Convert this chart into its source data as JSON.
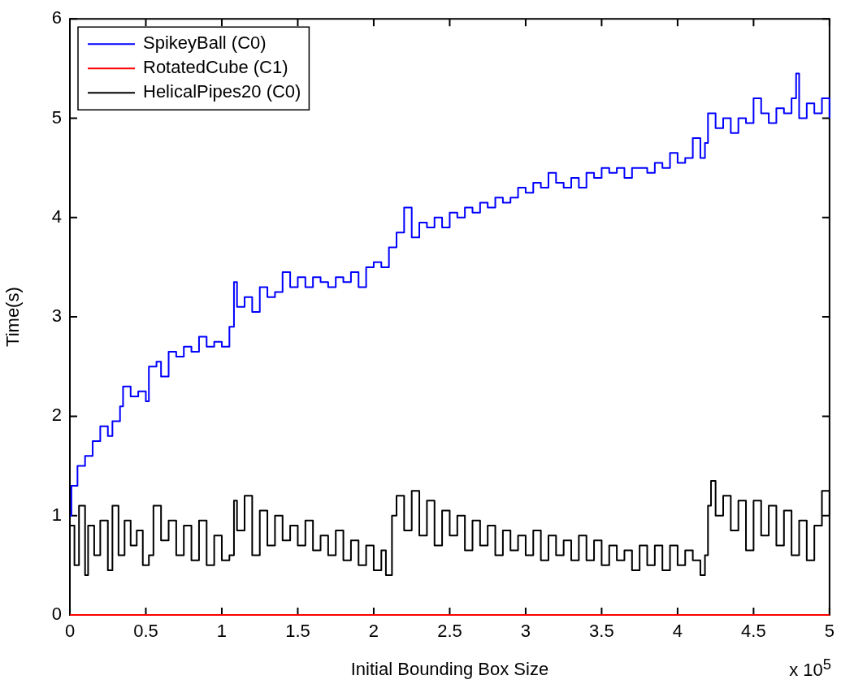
{
  "chart_data": {
    "type": "step",
    "xlabel": "Initial Bounding Box Size",
    "ylabel": "Time(s)",
    "xlim": [
      0,
      5
    ],
    "xticks": [
      0,
      0.5,
      1,
      1.5,
      2,
      2.5,
      3,
      3.5,
      4,
      4.5,
      5
    ],
    "ylim": [
      0,
      6
    ],
    "yticks": [
      0,
      1,
      2,
      3,
      4,
      5,
      6
    ],
    "grid": false,
    "legend": "top left",
    "marker": "none",
    "line_style": "solid",
    "annotations": [
      "x 10$^{5}$"
    ],
    "series": [
      {
        "name": "SpikeyBall (C0)",
        "color": "#0000ff",
        "x": [
          0,
          0.01,
          0.05,
          0.1,
          0.15,
          0.2,
          0.25,
          0.28,
          0.33,
          0.35,
          0.4,
          0.45,
          0.5,
          0.52,
          0.57,
          0.6,
          0.65,
          0.7,
          0.75,
          0.8,
          0.85,
          0.9,
          0.95,
          1.0,
          1.05,
          1.08,
          1.1,
          1.15,
          1.2,
          1.25,
          1.3,
          1.35,
          1.4,
          1.45,
          1.5,
          1.55,
          1.6,
          1.65,
          1.7,
          1.75,
          1.8,
          1.85,
          1.9,
          1.95,
          2.0,
          2.05,
          2.1,
          2.15,
          2.2,
          2.25,
          2.3,
          2.35,
          2.4,
          2.45,
          2.5,
          2.55,
          2.6,
          2.65,
          2.7,
          2.75,
          2.8,
          2.85,
          2.9,
          2.95,
          3.0,
          3.05,
          3.1,
          3.15,
          3.2,
          3.25,
          3.3,
          3.35,
          3.4,
          3.45,
          3.5,
          3.55,
          3.6,
          3.65,
          3.7,
          3.75,
          3.8,
          3.85,
          3.9,
          3.95,
          4.0,
          4.05,
          4.1,
          4.15,
          4.18,
          4.2,
          4.25,
          4.3,
          4.35,
          4.4,
          4.45,
          4.5,
          4.55,
          4.6,
          4.65,
          4.7,
          4.75,
          4.78,
          4.8,
          4.85,
          4.9,
          4.95,
          5.0
        ],
        "values": [
          1.0,
          1.3,
          1.5,
          1.6,
          1.75,
          1.9,
          1.8,
          1.95,
          2.1,
          2.3,
          2.2,
          2.25,
          2.15,
          2.5,
          2.55,
          2.4,
          2.65,
          2.6,
          2.7,
          2.65,
          2.8,
          2.7,
          2.75,
          2.7,
          2.9,
          3.35,
          3.1,
          3.2,
          3.05,
          3.3,
          3.2,
          3.25,
          3.45,
          3.3,
          3.4,
          3.3,
          3.4,
          3.35,
          3.3,
          3.4,
          3.35,
          3.45,
          3.3,
          3.5,
          3.55,
          3.5,
          3.7,
          3.85,
          4.1,
          3.8,
          3.95,
          3.9,
          4.0,
          3.9,
          4.05,
          4.0,
          4.1,
          4.05,
          4.15,
          4.1,
          4.2,
          4.15,
          4.2,
          4.3,
          4.25,
          4.35,
          4.3,
          4.45,
          4.35,
          4.3,
          4.4,
          4.3,
          4.45,
          4.4,
          4.5,
          4.45,
          4.5,
          4.4,
          4.5,
          4.5,
          4.45,
          4.55,
          4.5,
          4.65,
          4.55,
          4.6,
          4.8,
          4.6,
          4.75,
          5.05,
          4.9,
          5.0,
          4.85,
          5.0,
          4.95,
          5.2,
          5.05,
          4.95,
          5.1,
          5.05,
          5.2,
          5.45,
          5.0,
          5.15,
          5.05,
          5.2,
          5.0
        ]
      },
      {
        "name": "RotatedCube (C1)",
        "color": "#ff0000",
        "x": [
          0,
          5
        ],
        "values": [
          0,
          0
        ]
      },
      {
        "name": "HelicalPipes20 (C0)",
        "color": "#000000",
        "x": [
          0,
          0.03,
          0.06,
          0.1,
          0.12,
          0.16,
          0.2,
          0.25,
          0.28,
          0.32,
          0.36,
          0.4,
          0.44,
          0.48,
          0.52,
          0.55,
          0.6,
          0.65,
          0.7,
          0.75,
          0.8,
          0.85,
          0.9,
          0.95,
          1.0,
          1.05,
          1.08,
          1.1,
          1.15,
          1.2,
          1.25,
          1.3,
          1.35,
          1.4,
          1.45,
          1.5,
          1.55,
          1.6,
          1.65,
          1.7,
          1.75,
          1.8,
          1.85,
          1.9,
          1.95,
          2.0,
          2.05,
          2.08,
          2.12,
          2.15,
          2.2,
          2.25,
          2.3,
          2.35,
          2.4,
          2.45,
          2.5,
          2.55,
          2.6,
          2.65,
          2.7,
          2.75,
          2.8,
          2.85,
          2.9,
          2.95,
          3.0,
          3.05,
          3.1,
          3.15,
          3.2,
          3.25,
          3.3,
          3.35,
          3.4,
          3.45,
          3.5,
          3.55,
          3.6,
          3.65,
          3.7,
          3.75,
          3.8,
          3.85,
          3.9,
          3.95,
          4.0,
          4.05,
          4.1,
          4.15,
          4.18,
          4.2,
          4.22,
          4.25,
          4.3,
          4.35,
          4.4,
          4.45,
          4.5,
          4.55,
          4.6,
          4.65,
          4.7,
          4.75,
          4.8,
          4.85,
          4.9,
          4.95,
          5.0
        ],
        "values": [
          0.9,
          0.5,
          1.1,
          0.4,
          0.9,
          0.6,
          0.95,
          0.45,
          1.1,
          0.6,
          0.95,
          0.7,
          0.85,
          0.5,
          0.6,
          1.1,
          0.75,
          0.95,
          0.6,
          0.9,
          0.55,
          0.95,
          0.5,
          0.8,
          0.55,
          0.6,
          1.15,
          0.85,
          1.2,
          0.6,
          1.05,
          0.7,
          1.0,
          0.75,
          0.9,
          0.7,
          0.95,
          0.65,
          0.8,
          0.6,
          0.85,
          0.55,
          0.75,
          0.5,
          0.7,
          0.45,
          0.65,
          0.4,
          1.0,
          1.2,
          0.85,
          1.25,
          0.8,
          1.15,
          0.7,
          1.05,
          0.8,
          1.0,
          0.65,
          0.95,
          0.7,
          0.9,
          0.6,
          0.85,
          0.65,
          0.8,
          0.6,
          0.85,
          0.55,
          0.8,
          0.6,
          0.75,
          0.55,
          0.8,
          0.55,
          0.75,
          0.5,
          0.7,
          0.55,
          0.65,
          0.45,
          0.7,
          0.5,
          0.7,
          0.45,
          0.7,
          0.5,
          0.65,
          0.55,
          0.4,
          0.6,
          1.1,
          1.35,
          1.0,
          1.2,
          0.85,
          1.15,
          0.65,
          1.15,
          0.8,
          1.1,
          0.7,
          1.05,
          0.6,
          0.95,
          0.55,
          0.9,
          1.25,
          1.0
        ]
      }
    ]
  }
}
